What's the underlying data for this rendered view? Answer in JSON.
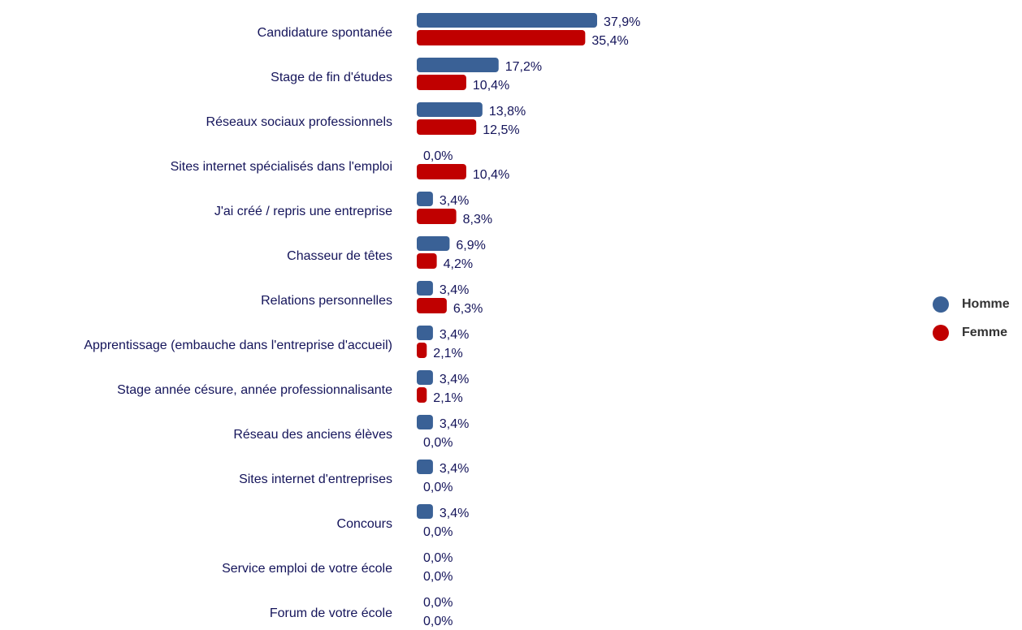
{
  "chart_data": {
    "type": "bar",
    "orientation": "horizontal",
    "categories": [
      "Candidature spontanée",
      "Stage de fin d'études",
      "Réseaux sociaux professionnels",
      "Sites internet spécialisés dans l'emploi",
      "J'ai créé / repris une entreprise",
      "Chasseur de têtes",
      "Relations personnelles",
      "Apprentissage (embauche dans l'entreprise d'accueil)",
      "Stage année césure, année professionnalisante",
      "Réseau des anciens élèves",
      "Sites internet d'entreprises",
      "Concours",
      "Service emploi de votre école",
      "Forum de votre école"
    ],
    "series": [
      {
        "name": "Homme",
        "color": "#3a6196",
        "values": [
          37.9,
          17.2,
          13.8,
          0,
          3.4,
          6.9,
          3.4,
          3.4,
          3.4,
          3.4,
          3.4,
          3.4,
          0,
          0
        ],
        "value_labels": [
          "37,9%",
          "17,2%",
          "13,8%",
          "0,0%",
          "3,4%",
          "6,9%",
          "3,4%",
          "3,4%",
          "3,4%",
          "3,4%",
          "3,4%",
          "3,4%",
          "0,0%",
          "0,0%"
        ]
      },
      {
        "name": "Femme",
        "color": "#c00000",
        "values": [
          35.4,
          10.4,
          12.5,
          10.4,
          8.3,
          4.2,
          6.3,
          2.1,
          2.1,
          0,
          0,
          0,
          0,
          0
        ],
        "value_labels": [
          "35,4%",
          "10,4%",
          "12,5%",
          "10,4%",
          "8,3%",
          "4,2%",
          "6,3%",
          "2,1%",
          "2,1%",
          "0,0%",
          "0,0%",
          "0,0%",
          "0,0%",
          "0,0%"
        ]
      }
    ],
    "legend": "right"
  }
}
